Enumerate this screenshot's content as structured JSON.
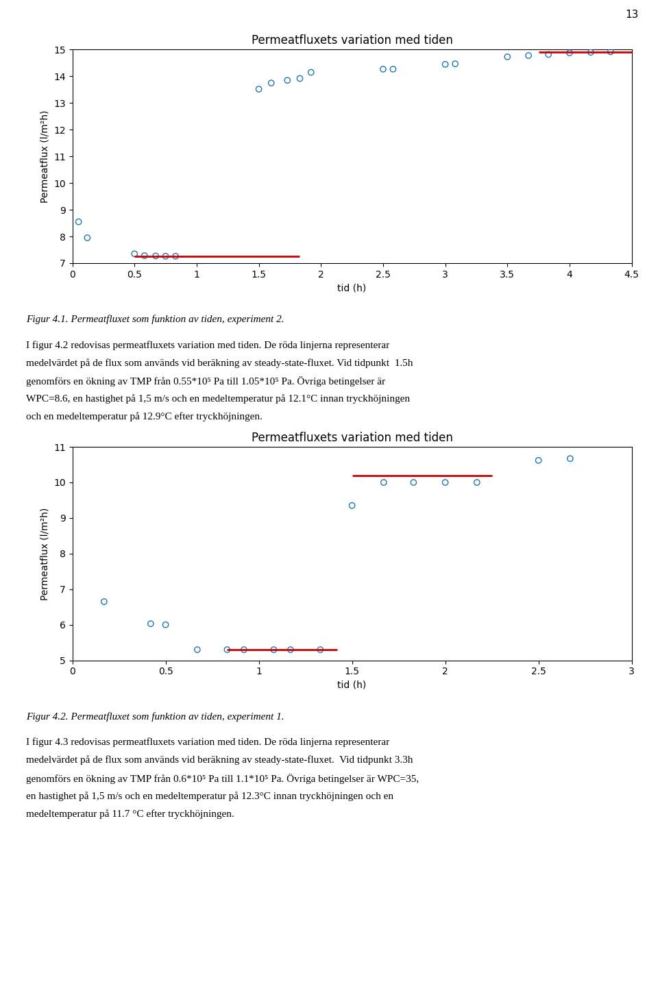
{
  "page_number": "13",
  "chart_data": [
    {
      "type": "scatter",
      "title": "Permeatfluxets variation med tiden",
      "x_label": "tid (h)",
      "y_label": "Permeatflux (l/m²h)",
      "xlim": [
        0,
        4.5
      ],
      "ylim": [
        7,
        15
      ],
      "xticks": [
        0,
        0.5,
        1,
        1.5,
        2,
        2.5,
        3,
        3.5,
        4,
        4.5
      ],
      "yticks": [
        7,
        8,
        9,
        10,
        11,
        12,
        13,
        14,
        15
      ],
      "marker": "o",
      "x": [
        0.05,
        0.12,
        0.5,
        0.58,
        0.67,
        0.75,
        0.83,
        1.5,
        1.6,
        1.73,
        1.83,
        1.92,
        2.5,
        2.58,
        3.0,
        3.08,
        3.5,
        3.67,
        3.83,
        4.0,
        4.17,
        4.33
      ],
      "values": [
        8.55,
        7.95,
        7.35,
        7.28,
        7.27,
        7.26,
        7.26,
        13.52,
        13.75,
        13.85,
        13.92,
        14.15,
        14.27,
        14.27,
        14.45,
        14.47,
        14.73,
        14.78,
        14.82,
        14.88,
        14.9,
        14.92
      ],
      "mean_lines": {
        "color": "#cc0000",
        "segments": [
          {
            "x_start": 0.5,
            "x_end": 1.83,
            "y": 7.26
          },
          {
            "x_start": 3.75,
            "x_end": 4.5,
            "y": 14.9
          }
        ]
      },
      "caption": "Figur 4.1. Permeatfluxet som funktion av tiden, experiment 2.",
      "body_text": [
        "I figur 4.2 redovisas permeatfluxets variation med tiden. De röda linjerna representerar",
        "medelvärdet på de flux som används vid beräkning av steady-state-fluxet. Vid tidpunkt  1.5h",
        "genomförs en ökning av TMP från 0.55*10⁵ Pa till 1.05*10⁵ Pa. Övriga betingelser är",
        "WPC=8.6, en hastighet på 1,5 m/s och en medeltemperatur på 12.1°C innan tryckhöjningen",
        "och en medeltemperatur på 12.9°C efter tryckhöjningen."
      ]
    },
    {
      "type": "scatter",
      "title": "Permeatfluxets variation med tiden",
      "x_label": "tid (h)",
      "y_label": "Permeatflux (l/m²h)",
      "xlim": [
        0,
        3
      ],
      "ylim": [
        5,
        11
      ],
      "xticks": [
        0,
        0.5,
        1,
        1.5,
        2,
        2.5,
        3
      ],
      "yticks": [
        5,
        6,
        7,
        8,
        9,
        10,
        11
      ],
      "marker": "o",
      "x": [
        0.17,
        0.42,
        0.5,
        0.67,
        0.83,
        0.92,
        1.08,
        1.17,
        1.33,
        1.5,
        1.67,
        1.83,
        2.0,
        2.17,
        2.5,
        2.67
      ],
      "values": [
        6.65,
        6.03,
        6.0,
        5.3,
        5.3,
        5.3,
        5.3,
        5.3,
        5.3,
        9.35,
        10.0,
        10.0,
        10.0,
        10.0,
        10.62,
        10.67
      ],
      "mean_lines": {
        "color": "#cc0000",
        "segments": [
          {
            "x_start": 0.83,
            "x_end": 1.42,
            "y": 5.3
          },
          {
            "x_start": 1.5,
            "x_end": 2.25,
            "y": 10.2
          }
        ]
      },
      "caption": "Figur 4.2. Permeatfluxet som funktion av tiden, experiment 1.",
      "body_text": [
        "I figur 4.3 redovisas permeatfluxets variation med tiden. De röda linjerna representerar",
        "medelvärdet på de flux som används vid beräkning av steady-state-fluxet.  Vid tidpunkt 3.3h",
        "genomförs en ökning av TMP från 0.6*10⁵ Pa till 1.1*10⁵ Pa. Övriga betingelser är WPC=35,",
        "en hastighet på 1,5 m/s och en medeltemperatur på 12.3°C innan tryckhöjningen och en",
        "medeltemperatur på 11.7 °C efter tryckhöjningen."
      ]
    }
  ]
}
